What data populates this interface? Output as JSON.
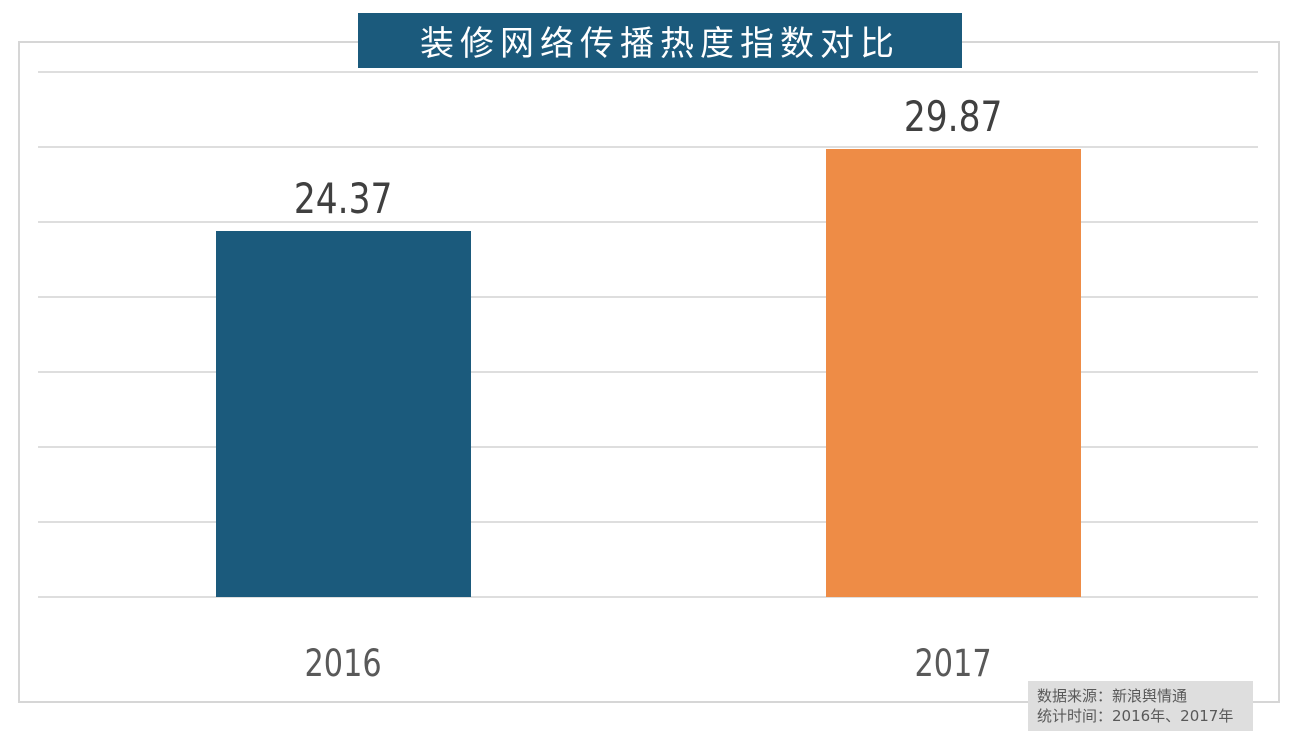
{
  "chart_data": {
    "type": "bar",
    "title": "装修网络传播热度指数对比",
    "categories": [
      "2016",
      "2017"
    ],
    "values": [
      24.37,
      29.87
    ],
    "value_labels": [
      "24.37",
      "29.87"
    ],
    "xlabel": "",
    "ylabel": "",
    "ylim": [
      0,
      35
    ],
    "gridline_step": 5,
    "grid": true,
    "legend_position": "none",
    "bar_colors": [
      "#1b5a7c",
      "#ee8c46"
    ],
    "title_bg_color": "#1b5a7c",
    "title_text_color": "#ffffff",
    "gridline_color": "#dedede",
    "frame_border_color": "#d6d6d6"
  },
  "source_note": {
    "line1": "数据来源：新浪舆情通",
    "line2": "统计时间：2016年、2017年",
    "bg_color": "#dedede",
    "text_color": "#595959"
  }
}
